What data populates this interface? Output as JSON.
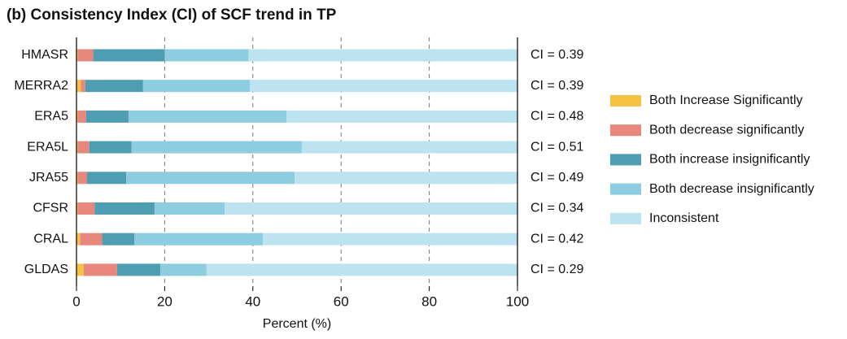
{
  "chart_data": {
    "type": "stacked-barh",
    "title": "(b) Consistency Index (CI) of SCF trend in TP",
    "xlabel": "Percent (%)",
    "categories": [
      "HMASR",
      "MERRA2",
      "ERA5",
      "ERA5L",
      "JRA55",
      "CFSR",
      "CRAL",
      "GLDAS"
    ],
    "annotations": [
      "CI = 0.39",
      "CI = 0.39",
      "CI = 0.48",
      "CI = 0.51",
      "CI = 0.49",
      "CI = 0.34",
      "CI = 0.42",
      "CI = 0.29"
    ],
    "series": [
      {
        "name": "Both Increase Significantly",
        "color": "#f5c242",
        "values": [
          0.3,
          1,
          0.3,
          0.3,
          0.3,
          0.3,
          0.8,
          1.6
        ]
      },
      {
        "name": "Both decrease significantly",
        "color": "#e8877c",
        "values": [
          3.5,
          1,
          1.9,
          2.6,
          2.1,
          3.8,
          5,
          7.6
        ]
      },
      {
        "name": "Both increase insignificantly",
        "color": "#4f9db3",
        "values": [
          16.2,
          13.1,
          9.6,
          9.6,
          8.9,
          13.6,
          7.3,
          9.8
        ]
      },
      {
        "name": "Both decrease insignificantly",
        "color": "#8ecde0",
        "values": [
          19,
          24.2,
          35.8,
          38.6,
          38.2,
          15.9,
          29.2,
          10.5
        ]
      },
      {
        "name": "Inconsistent",
        "color": "#bde3f0",
        "values": [
          61,
          60.7,
          52.4,
          48.9,
          50.5,
          66.4,
          57.7,
          70.5
        ]
      }
    ],
    "xlim": [
      0,
      100
    ],
    "xticks": [
      0,
      20,
      40,
      60,
      80,
      100
    ],
    "grid": true,
    "legend": "right"
  }
}
